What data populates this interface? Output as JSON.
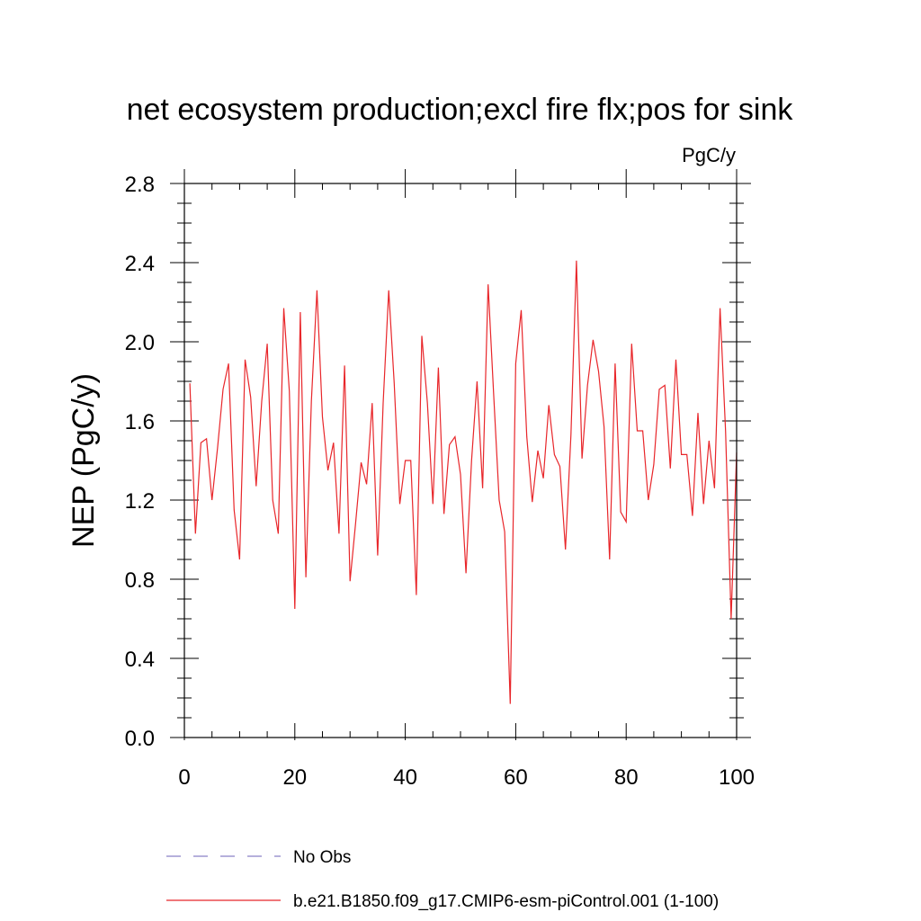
{
  "chart_data": {
    "type": "line",
    "title": "net ecosystem production;excl fire flx;pos for sink",
    "units_label": "PgC/y",
    "ylabel": "NEP  (PgC/y)",
    "xlabel": "",
    "xlim": [
      0,
      100
    ],
    "ylim": [
      0.0,
      2.8
    ],
    "x_ticks": [
      0,
      20,
      40,
      60,
      80,
      100
    ],
    "x_tick_labels": [
      "0",
      "20",
      "40",
      "60",
      "80",
      "100"
    ],
    "y_ticks": [
      0.0,
      0.4,
      0.8,
      1.2,
      1.6,
      2.0,
      2.4,
      2.8
    ],
    "y_tick_labels": [
      "0.0",
      "0.4",
      "0.8",
      "1.2",
      "1.6",
      "2.0",
      "2.4",
      "2.8"
    ],
    "grid": false,
    "legend_position": "bottom",
    "legend": [
      {
        "label": "No Obs",
        "style": "dashed",
        "color": "#8a80c8"
      },
      {
        "label": "b.e21.B1850.f09_g17.CMIP6-esm-piControl.001 (1-100)",
        "style": "solid",
        "color": "#e8262a"
      }
    ],
    "series": [
      {
        "name": "b.e21.B1850.f09_g17.CMIP6-esm-piControl.001 (1-100)",
        "color": "#e8262a",
        "x": [
          1,
          2,
          3,
          4,
          5,
          6,
          7,
          8,
          9,
          10,
          11,
          12,
          13,
          14,
          15,
          16,
          17,
          18,
          19,
          20,
          21,
          22,
          23,
          24,
          25,
          26,
          27,
          28,
          29,
          30,
          31,
          32,
          33,
          34,
          35,
          36,
          37,
          38,
          39,
          40,
          41,
          42,
          43,
          44,
          45,
          46,
          47,
          48,
          49,
          50,
          51,
          52,
          53,
          54,
          55,
          56,
          57,
          58,
          59,
          60,
          61,
          62,
          63,
          64,
          65,
          66,
          67,
          68,
          69,
          70,
          71,
          72,
          73,
          74,
          75,
          76,
          77,
          78,
          79,
          80,
          81,
          82,
          83,
          84,
          85,
          86,
          87,
          88,
          89,
          90,
          91,
          92,
          93,
          94,
          95,
          96,
          97,
          98,
          99,
          100
        ],
        "values": [
          1.79,
          1.03,
          1.49,
          1.51,
          1.2,
          1.46,
          1.76,
          1.89,
          1.15,
          0.9,
          1.91,
          1.72,
          1.27,
          1.7,
          1.99,
          1.2,
          1.03,
          2.17,
          1.75,
          0.65,
          2.15,
          0.81,
          1.7,
          2.26,
          1.62,
          1.35,
          1.49,
          1.03,
          1.88,
          0.79,
          1.08,
          1.39,
          1.28,
          1.69,
          0.92,
          1.69,
          2.26,
          1.79,
          1.18,
          1.4,
          1.4,
          0.72,
          2.03,
          1.69,
          1.18,
          1.87,
          1.13,
          1.48,
          1.52,
          1.33,
          0.83,
          1.4,
          1.8,
          1.26,
          2.29,
          1.74,
          1.2,
          1.04,
          0.17,
          1.89,
          2.16,
          1.52,
          1.19,
          1.45,
          1.31,
          1.68,
          1.43,
          1.37,
          0.95,
          1.53,
          2.41,
          1.41,
          1.78,
          2.01,
          1.85,
          1.57,
          0.9,
          1.89,
          1.14,
          1.09,
          1.99,
          1.55,
          1.55,
          1.2,
          1.38,
          1.76,
          1.78,
          1.36,
          1.91,
          1.43,
          1.43,
          1.12,
          1.64,
          1.18,
          1.5,
          1.26,
          2.17,
          1.55,
          0.6,
          1.44
        ]
      }
    ]
  }
}
